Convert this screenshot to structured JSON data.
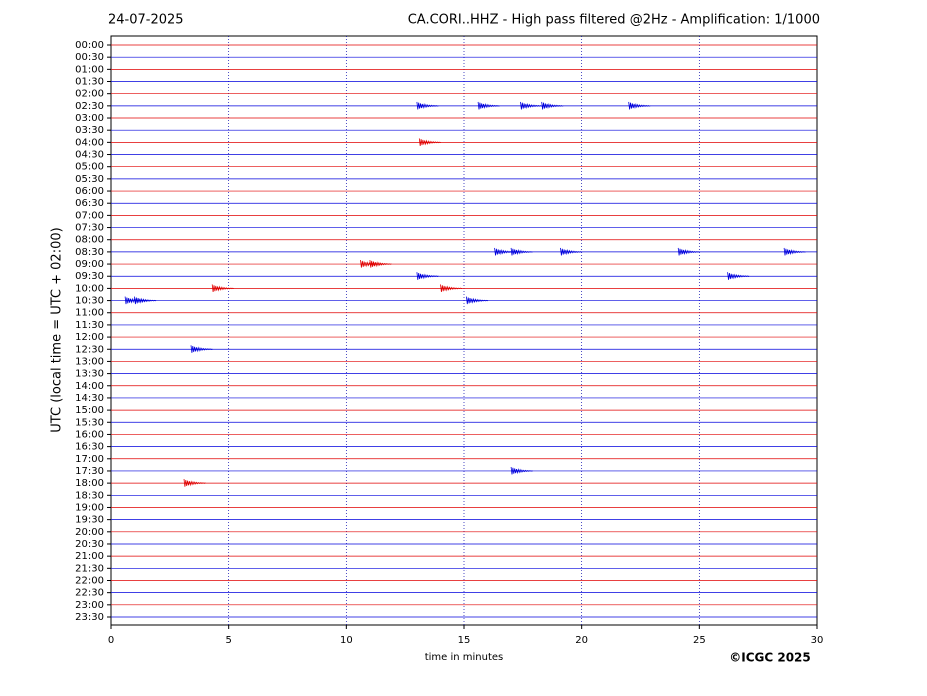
{
  "chart_data": {
    "type": "helicorder",
    "date": "24-07-2025",
    "title": "CA.CORI..HHZ - High pass filtered @2Hz - Amplification: 1/1000",
    "y_label": "UTC (local time = UTC + 02:00)",
    "x_label": "time in minutes",
    "credit": "©ICGC 2025",
    "categories": [
      "00:00",
      "00:30",
      "01:00",
      "01:30",
      "02:00",
      "02:30",
      "03:00",
      "03:30",
      "04:00",
      "04:30",
      "05:00",
      "05:30",
      "06:00",
      "06:30",
      "07:00",
      "07:30",
      "08:00",
      "08:30",
      "09:00",
      "09:30",
      "10:00",
      "10:30",
      "11:00",
      "11:30",
      "12:00",
      "12:30",
      "13:00",
      "13:30",
      "14:00",
      "14:30",
      "15:00",
      "15:30",
      "16:00",
      "16:30",
      "17:00",
      "17:30",
      "18:00",
      "18:30",
      "19:00",
      "19:30",
      "20:00",
      "20:30",
      "21:00",
      "21:30",
      "22:00",
      "22:30",
      "23:00",
      "23:30"
    ],
    "colors": [
      "#e00000",
      "#0000dd"
    ],
    "xlim": [
      0,
      30
    ],
    "xticks": [
      0,
      5,
      10,
      15,
      20,
      25,
      30
    ],
    "grid": true,
    "events": [
      {
        "time": "02:30",
        "x": 13.0
      },
      {
        "time": "02:30",
        "x": 15.6
      },
      {
        "time": "02:30",
        "x": 17.4
      },
      {
        "time": "02:30",
        "x": 18.3
      },
      {
        "time": "02:30",
        "x": 22.0
      },
      {
        "time": "04:00",
        "x": 13.1
      },
      {
        "time": "08:30",
        "x": 16.3
      },
      {
        "time": "08:30",
        "x": 17.0
      },
      {
        "time": "08:30",
        "x": 19.1
      },
      {
        "time": "08:30",
        "x": 24.1
      },
      {
        "time": "08:30",
        "x": 28.6
      },
      {
        "time": "09:00",
        "x": 10.6
      },
      {
        "time": "09:00",
        "x": 11.0
      },
      {
        "time": "09:30",
        "x": 13.0
      },
      {
        "time": "09:30",
        "x": 26.2
      },
      {
        "time": "10:00",
        "x": 14.0
      },
      {
        "time": "10:00",
        "x": 4.3
      },
      {
        "time": "10:30",
        "x": 0.6
      },
      {
        "time": "10:30",
        "x": 1.0
      },
      {
        "time": "10:30",
        "x": 15.1
      },
      {
        "time": "12:30",
        "x": 3.4
      },
      {
        "time": "17:30",
        "x": 17.0
      },
      {
        "time": "18:00",
        "x": 3.1
      }
    ]
  }
}
